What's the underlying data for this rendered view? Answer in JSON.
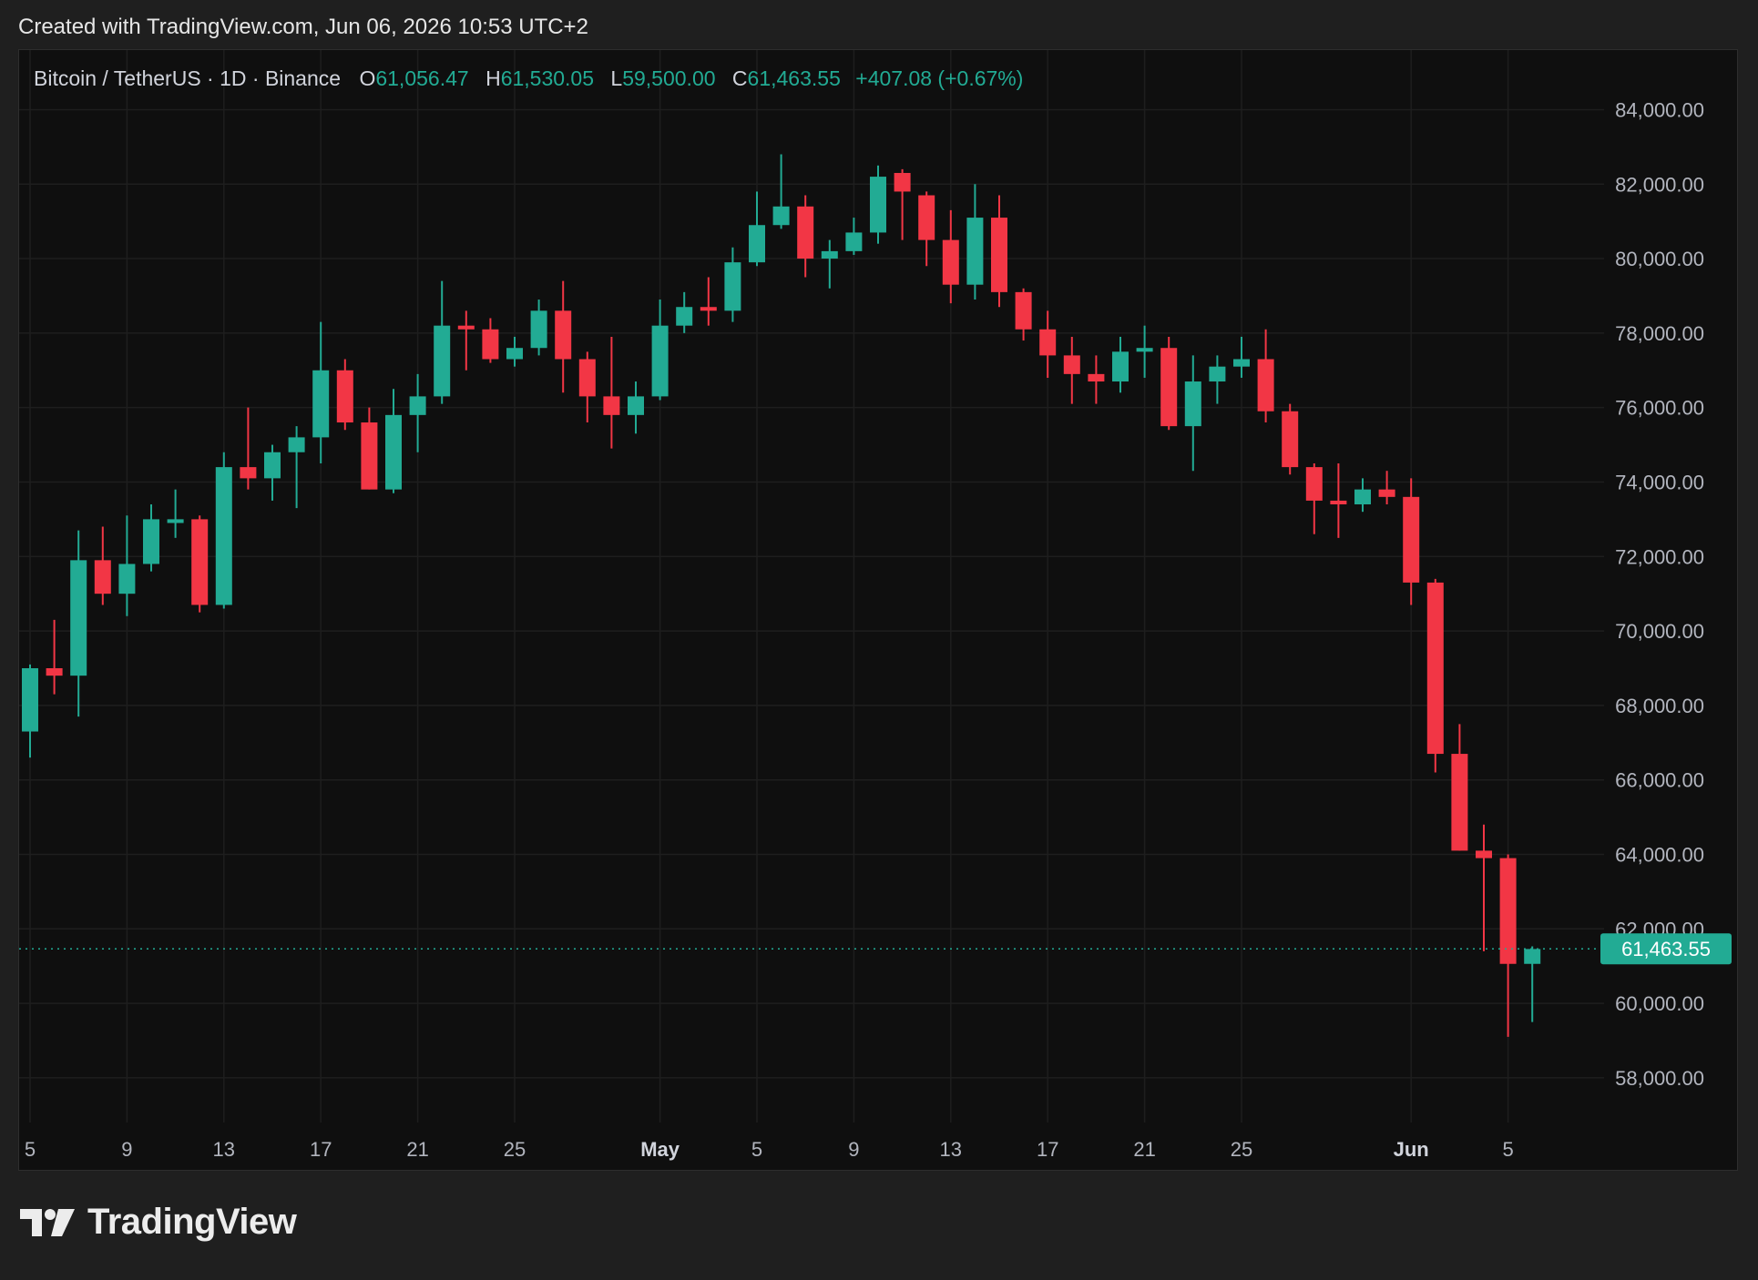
{
  "header": {
    "created_text": "Created with TradingView.com, Jun 06, 2026 10:53 UTC+2"
  },
  "legend": {
    "symbol": "Bitcoin / TetherUS · 1D · Binance",
    "o_label": "O",
    "o_value": "61,056.47",
    "h_label": "H",
    "h_value": "61,530.05",
    "l_label": "L",
    "l_value": "59,500.00",
    "c_label": "C",
    "c_value": "61,463.55",
    "change": "+407.08 (+0.67%)"
  },
  "price_label": "61,463.55",
  "brand": {
    "name": "TradingView",
    "icon": "tradingview-logo-icon"
  },
  "colors": {
    "up": "#22ab94",
    "down": "#f23645",
    "background": "#0f0f0f",
    "grid": "#1e1e1e"
  },
  "chart_data": {
    "type": "candlestick",
    "interval": "1D",
    "ylim": [
      56800,
      85600
    ],
    "grid": true,
    "y_ticks": [
      {
        "value": 58000,
        "label": "58,000.00"
      },
      {
        "value": 60000,
        "label": "60,000.00"
      },
      {
        "value": 62000,
        "label": "62,000.00"
      },
      {
        "value": 64000,
        "label": "64,000.00"
      },
      {
        "value": 66000,
        "label": "66,000.00"
      },
      {
        "value": 68000,
        "label": "68,000.00"
      },
      {
        "value": 70000,
        "label": "70,000.00"
      },
      {
        "value": 72000,
        "label": "72,000.00"
      },
      {
        "value": 74000,
        "label": "74,000.00"
      },
      {
        "value": 76000,
        "label": "76,000.00"
      },
      {
        "value": 78000,
        "label": "78,000.00"
      },
      {
        "value": 80000,
        "label": "80,000.00"
      },
      {
        "value": 82000,
        "label": "82,000.00"
      },
      {
        "value": 84000,
        "label": "84,000.00"
      }
    ],
    "x_ticks": [
      {
        "index": 0,
        "label": "5",
        "bold": false
      },
      {
        "index": 4,
        "label": "9",
        "bold": false
      },
      {
        "index": 8,
        "label": "13",
        "bold": false
      },
      {
        "index": 12,
        "label": "17",
        "bold": false
      },
      {
        "index": 16,
        "label": "21",
        "bold": false
      },
      {
        "index": 20,
        "label": "25",
        "bold": false
      },
      {
        "index": 26,
        "label": "May",
        "bold": true
      },
      {
        "index": 30,
        "label": "5",
        "bold": false
      },
      {
        "index": 34,
        "label": "9",
        "bold": false
      },
      {
        "index": 38,
        "label": "13",
        "bold": false
      },
      {
        "index": 42,
        "label": "17",
        "bold": false
      },
      {
        "index": 46,
        "label": "21",
        "bold": false
      },
      {
        "index": 50,
        "label": "25",
        "bold": false
      },
      {
        "index": 57,
        "label": "Jun",
        "bold": true
      },
      {
        "index": 61,
        "label": "5",
        "bold": false
      }
    ],
    "last_price": 61463.55,
    "candles": [
      {
        "o": 67300,
        "h": 69100,
        "l": 66600,
        "c": 69000
      },
      {
        "o": 69000,
        "h": 70300,
        "l": 68300,
        "c": 68800
      },
      {
        "o": 68800,
        "h": 72700,
        "l": 67700,
        "c": 71900
      },
      {
        "o": 71900,
        "h": 72800,
        "l": 70700,
        "c": 71000
      },
      {
        "o": 71000,
        "h": 73100,
        "l": 70400,
        "c": 71800
      },
      {
        "o": 71800,
        "h": 73400,
        "l": 71600,
        "c": 73000
      },
      {
        "o": 72900,
        "h": 73800,
        "l": 72500,
        "c": 73000
      },
      {
        "o": 73000,
        "h": 73100,
        "l": 70500,
        "c": 70700
      },
      {
        "o": 70700,
        "h": 74800,
        "l": 70600,
        "c": 74400
      },
      {
        "o": 74400,
        "h": 76000,
        "l": 73800,
        "c": 74100
      },
      {
        "o": 74100,
        "h": 75000,
        "l": 73500,
        "c": 74800
      },
      {
        "o": 74800,
        "h": 75500,
        "l": 73300,
        "c": 75200
      },
      {
        "o": 75200,
        "h": 78300,
        "l": 74500,
        "c": 77000
      },
      {
        "o": 77000,
        "h": 77300,
        "l": 75400,
        "c": 75600
      },
      {
        "o": 75600,
        "h": 76000,
        "l": 73800,
        "c": 73800
      },
      {
        "o": 73800,
        "h": 76500,
        "l": 73700,
        "c": 75800
      },
      {
        "o": 75800,
        "h": 76900,
        "l": 74800,
        "c": 76300
      },
      {
        "o": 76300,
        "h": 79400,
        "l": 76100,
        "c": 78200
      },
      {
        "o": 78200,
        "h": 78600,
        "l": 77000,
        "c": 78100
      },
      {
        "o": 78100,
        "h": 78400,
        "l": 77200,
        "c": 77300
      },
      {
        "o": 77300,
        "h": 77900,
        "l": 77100,
        "c": 77600
      },
      {
        "o": 77600,
        "h": 78900,
        "l": 77400,
        "c": 78600
      },
      {
        "o": 78600,
        "h": 79400,
        "l": 76400,
        "c": 77300
      },
      {
        "o": 77300,
        "h": 77500,
        "l": 75600,
        "c": 76300
      },
      {
        "o": 76300,
        "h": 77900,
        "l": 74900,
        "c": 75800
      },
      {
        "o": 75800,
        "h": 76700,
        "l": 75300,
        "c": 76300
      },
      {
        "o": 76300,
        "h": 78900,
        "l": 76200,
        "c": 78200
      },
      {
        "o": 78200,
        "h": 79100,
        "l": 78000,
        "c": 78700
      },
      {
        "o": 78700,
        "h": 79500,
        "l": 78200,
        "c": 78600
      },
      {
        "o": 78600,
        "h": 80300,
        "l": 78300,
        "c": 79900
      },
      {
        "o": 79900,
        "h": 81800,
        "l": 79800,
        "c": 80900
      },
      {
        "o": 80900,
        "h": 82800,
        "l": 80800,
        "c": 81400
      },
      {
        "o": 81400,
        "h": 81700,
        "l": 79500,
        "c": 80000
      },
      {
        "o": 80000,
        "h": 80500,
        "l": 79200,
        "c": 80200
      },
      {
        "o": 80200,
        "h": 81100,
        "l": 80100,
        "c": 80700
      },
      {
        "o": 80700,
        "h": 82500,
        "l": 80400,
        "c": 82200
      },
      {
        "o": 82300,
        "h": 82400,
        "l": 80500,
        "c": 81800
      },
      {
        "o": 81700,
        "h": 81800,
        "l": 79800,
        "c": 80500
      },
      {
        "o": 80500,
        "h": 81300,
        "l": 78800,
        "c": 79300
      },
      {
        "o": 79300,
        "h": 82000,
        "l": 78900,
        "c": 81100
      },
      {
        "o": 81100,
        "h": 81700,
        "l": 78700,
        "c": 79100
      },
      {
        "o": 79100,
        "h": 79200,
        "l": 77800,
        "c": 78100
      },
      {
        "o": 78100,
        "h": 78600,
        "l": 76800,
        "c": 77400
      },
      {
        "o": 77400,
        "h": 77900,
        "l": 76100,
        "c": 76900
      },
      {
        "o": 76900,
        "h": 77400,
        "l": 76100,
        "c": 76700
      },
      {
        "o": 76700,
        "h": 77900,
        "l": 76400,
        "c": 77500
      },
      {
        "o": 77500,
        "h": 78200,
        "l": 76800,
        "c": 77600
      },
      {
        "o": 77600,
        "h": 77900,
        "l": 75400,
        "c": 75500
      },
      {
        "o": 75500,
        "h": 77400,
        "l": 74300,
        "c": 76700
      },
      {
        "o": 76700,
        "h": 77400,
        "l": 76100,
        "c": 77100
      },
      {
        "o": 77100,
        "h": 77900,
        "l": 76800,
        "c": 77300
      },
      {
        "o": 77300,
        "h": 78100,
        "l": 75600,
        "c": 75900
      },
      {
        "o": 75900,
        "h": 76100,
        "l": 74200,
        "c": 74400
      },
      {
        "o": 74400,
        "h": 74500,
        "l": 72600,
        "c": 73500
      },
      {
        "o": 73500,
        "h": 74500,
        "l": 72500,
        "c": 73400
      },
      {
        "o": 73400,
        "h": 74100,
        "l": 73200,
        "c": 73800
      },
      {
        "o": 73800,
        "h": 74300,
        "l": 73400,
        "c": 73600
      },
      {
        "o": 73600,
        "h": 74100,
        "l": 70700,
        "c": 71300
      },
      {
        "o": 71300,
        "h": 71400,
        "l": 66200,
        "c": 66700
      },
      {
        "o": 66700,
        "h": 67500,
        "l": 64100,
        "c": 64100
      },
      {
        "o": 64100,
        "h": 64800,
        "l": 61400,
        "c": 63900
      },
      {
        "o": 63900,
        "h": 64000,
        "l": 59100,
        "c": 61060
      },
      {
        "o": 61060,
        "h": 61530,
        "l": 59500,
        "c": 61460
      }
    ]
  }
}
